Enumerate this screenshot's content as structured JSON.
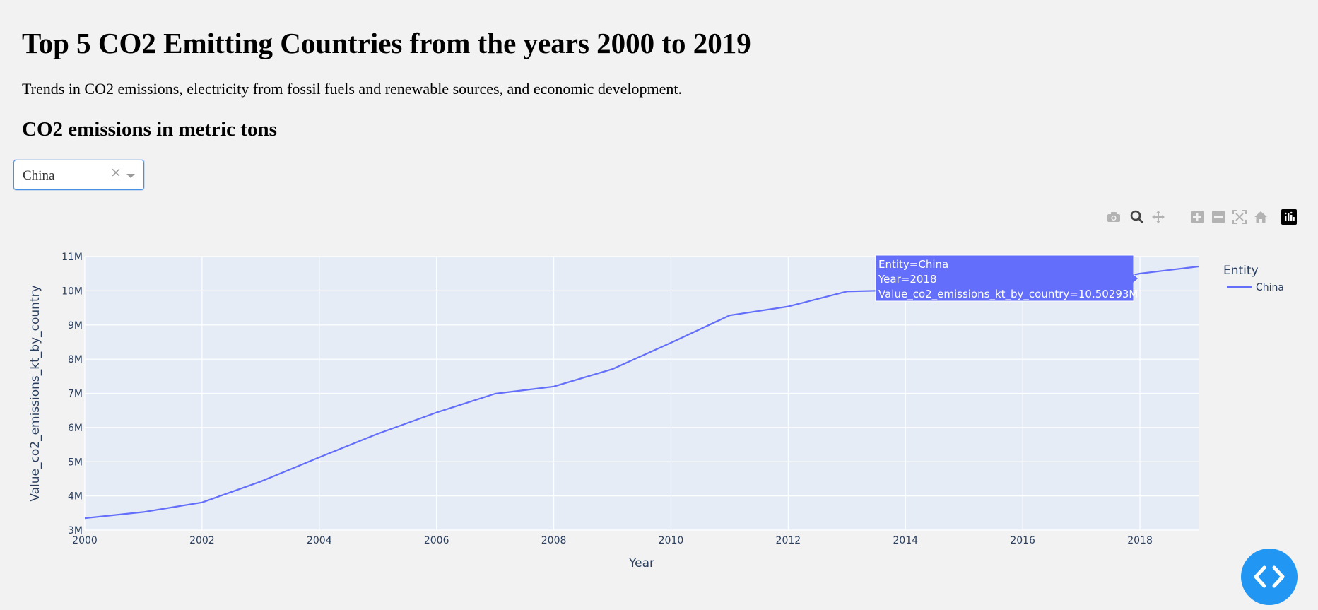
{
  "page": {
    "title": "Top 5 CO2 Emitting Countries from the years 2000 to 2019",
    "subtitle": "Trends in CO2 emissions, electricity from fossil fuels and renewable sources, and economic development.",
    "section_title": "CO2 emissions in metric tons"
  },
  "dropdown": {
    "selected": "China",
    "clear_glyph": "×"
  },
  "modebar": {
    "icons": [
      "camera-icon",
      "zoom-icon",
      "pan-icon",
      "zoom-in-icon",
      "zoom-out-icon",
      "autoscale-icon",
      "reset-axes-icon",
      "plotly-logo-icon"
    ]
  },
  "tooltip": {
    "line1": "Entity=China",
    "line2": "Year=2018",
    "line3": "Value_co2_emissions_kt_by_country=10.50293M"
  },
  "chart_data": {
    "type": "line",
    "xlabel": "Year",
    "ylabel": "Value_co2_emissions_kt_by_country",
    "xlim": [
      2000,
      2019
    ],
    "ylim": [
      3000000,
      11000000
    ],
    "x_ticks": [
      2000,
      2002,
      2004,
      2006,
      2008,
      2010,
      2012,
      2014,
      2016,
      2018
    ],
    "x_tick_labels": [
      "2000",
      "2002",
      "2004",
      "2006",
      "2008",
      "2010",
      "2012",
      "2014",
      "2016",
      "2018"
    ],
    "y_ticks": [
      3000000,
      4000000,
      5000000,
      6000000,
      7000000,
      8000000,
      9000000,
      10000000,
      11000000
    ],
    "y_tick_labels": [
      "3M",
      "4M",
      "5M",
      "6M",
      "7M",
      "8M",
      "9M",
      "10M",
      "11M"
    ],
    "grid": true,
    "legend_title": "Entity",
    "legend_position": "top-right",
    "series": [
      {
        "name": "China",
        "color": "#636efa",
        "x": [
          2000,
          2001,
          2002,
          2003,
          2004,
          2005,
          2006,
          2007,
          2008,
          2009,
          2010,
          2011,
          2012,
          2013,
          2014,
          2015,
          2016,
          2017,
          2018,
          2019
        ],
        "y": [
          3350000,
          3530000,
          3810000,
          4420000,
          5130000,
          5820000,
          6440000,
          6990000,
          7200000,
          7710000,
          8480000,
          9280000,
          9540000,
          9980000,
          10020000,
          9990000,
          9980000,
          10150000,
          10502930,
          10710000
        ]
      }
    ]
  },
  "colors": {
    "page_bg": "#f2f2f2",
    "plot_bg": "#e5ecf6",
    "line": "#636efa",
    "fab": "#2196f3"
  }
}
